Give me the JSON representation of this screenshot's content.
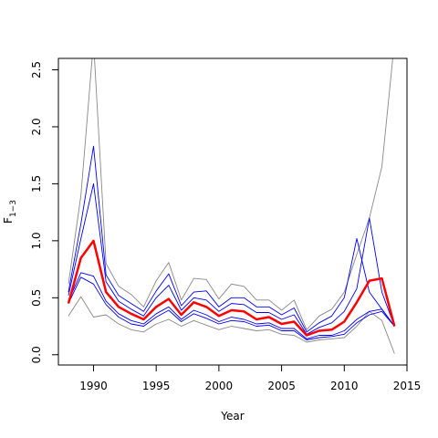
{
  "chart_data": {
    "type": "line",
    "xlabel": "Year",
    "ylabel": "F",
    "ylabel_subscript": "1−3",
    "xlim": [
      1987.2,
      2015.0
    ],
    "ylim": [
      -0.09,
      2.6
    ],
    "x_ticks": [
      1990,
      1995,
      2000,
      2005,
      2010,
      2015
    ],
    "y_ticks": [
      0.0,
      0.5,
      1.0,
      1.5,
      2.0,
      2.5
    ],
    "x_tick_labels": [
      "1990",
      "1995",
      "2000",
      "2005",
      "2010",
      "2015"
    ],
    "y_tick_labels": [
      "0.0",
      "0.5",
      "1.0",
      "1.5",
      "2.0",
      "2.5"
    ],
    "grid": false,
    "legend": "none",
    "x": [
      1988,
      1989,
      1990,
      1991,
      1992,
      1993,
      1994,
      1995,
      1996,
      1997,
      1998,
      1999,
      2000,
      2001,
      2002,
      2003,
      2004,
      2005,
      2006,
      2007,
      2008,
      2009,
      2010,
      2011,
      2012,
      2013,
      2014
    ],
    "series": [
      {
        "color": "#ff0000",
        "width": 2.5,
        "values": [
          0.45,
          0.85,
          1.0,
          0.55,
          0.42,
          0.36,
          0.31,
          0.42,
          0.49,
          0.35,
          0.46,
          0.42,
          0.34,
          0.39,
          0.38,
          0.31,
          0.33,
          0.27,
          0.29,
          0.17,
          0.21,
          0.22,
          0.29,
          0.46,
          0.65,
          0.67,
          0.25
        ]
      },
      {
        "color": "#0000ff",
        "width": 0.9,
        "values": [
          0.55,
          1.15,
          1.83,
          0.7,
          0.52,
          0.45,
          0.38,
          0.56,
          0.71,
          0.43,
          0.55,
          0.56,
          0.42,
          0.5,
          0.5,
          0.42,
          0.42,
          0.35,
          0.41,
          0.2,
          0.28,
          0.34,
          0.5,
          1.02,
          0.55,
          0.4,
          0.25
        ]
      },
      {
        "color": "#0000ff",
        "width": 0.9,
        "values": [
          0.52,
          1.02,
          1.5,
          0.64,
          0.47,
          0.4,
          0.34,
          0.5,
          0.61,
          0.39,
          0.5,
          0.48,
          0.38,
          0.45,
          0.44,
          0.37,
          0.37,
          0.31,
          0.35,
          0.18,
          0.24,
          0.28,
          0.38,
          0.58,
          1.2,
          0.55,
          0.25
        ]
      },
      {
        "color": "#0000ff",
        "width": 0.9,
        "values": [
          0.47,
          0.72,
          0.69,
          0.47,
          0.36,
          0.3,
          0.27,
          0.36,
          0.42,
          0.31,
          0.39,
          0.35,
          0.29,
          0.33,
          0.31,
          0.27,
          0.28,
          0.23,
          0.23,
          0.14,
          0.17,
          0.17,
          0.21,
          0.31,
          0.38,
          0.4,
          0.25
        ]
      },
      {
        "color": "#0000ff",
        "width": 0.9,
        "values": [
          0.45,
          0.68,
          0.62,
          0.44,
          0.33,
          0.27,
          0.25,
          0.33,
          0.39,
          0.29,
          0.36,
          0.32,
          0.27,
          0.3,
          0.29,
          0.25,
          0.26,
          0.21,
          0.21,
          0.13,
          0.15,
          0.16,
          0.18,
          0.28,
          0.35,
          0.38,
          0.25
        ]
      },
      {
        "color": "#888888",
        "width": 0.9,
        "values": [
          0.62,
          1.4,
          2.75,
          0.8,
          0.6,
          0.53,
          0.42,
          0.65,
          0.81,
          0.48,
          0.67,
          0.66,
          0.49,
          0.62,
          0.6,
          0.48,
          0.48,
          0.39,
          0.48,
          0.22,
          0.34,
          0.4,
          0.55,
          0.88,
          1.2,
          1.65,
          2.75
        ]
      },
      {
        "color": "#888888",
        "width": 0.9,
        "values": [
          0.34,
          0.51,
          0.33,
          0.35,
          0.27,
          0.22,
          0.2,
          0.27,
          0.31,
          0.25,
          0.3,
          0.26,
          0.22,
          0.25,
          0.23,
          0.21,
          0.22,
          0.18,
          0.17,
          0.11,
          0.13,
          0.14,
          0.15,
          0.25,
          0.38,
          0.3,
          0.01
        ]
      }
    ]
  }
}
